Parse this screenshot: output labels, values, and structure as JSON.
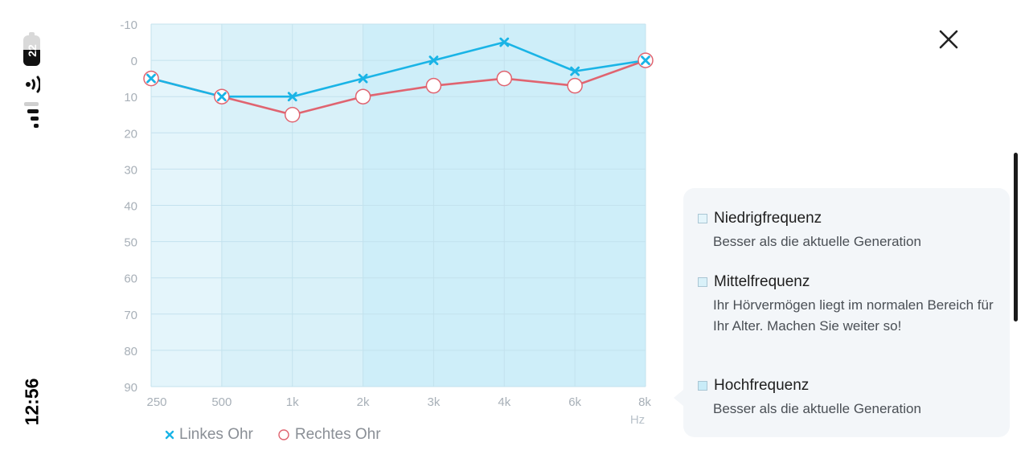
{
  "status_bar": {
    "time": "12:56",
    "battery_level": "22"
  },
  "colors": {
    "left_ear": "#1ab4e6",
    "right_ear": "#e06470",
    "band_low": "#e4f5fb",
    "band_mid": "#d9f1f9",
    "band_high": "#ceeef9"
  },
  "chart_data": {
    "type": "line",
    "categories": [
      "250",
      "500",
      "1k",
      "2k",
      "3k",
      "4k",
      "6k",
      "8k"
    ],
    "y_ticks": [
      "-10",
      "0",
      "10",
      "20",
      "30",
      "40",
      "50",
      "60",
      "70",
      "80",
      "90"
    ],
    "ylim": [
      -10,
      90
    ],
    "y_inverted": true,
    "x_unit": "Hz",
    "grid": true,
    "series": [
      {
        "name": "Linkes Ohr",
        "marker": "x",
        "color": "#1ab4e6",
        "values": [
          5,
          10,
          10,
          5,
          0,
          -5,
          3,
          0
        ]
      },
      {
        "name": "Rechtes Ohr",
        "marker": "o",
        "color": "#e06470",
        "values": [
          5,
          10,
          15,
          10,
          7,
          5,
          7,
          0
        ]
      }
    ],
    "bands": [
      {
        "name": "Niedrigfrequenz",
        "from": "250",
        "to": "500"
      },
      {
        "name": "Mittelfrequenz",
        "from": "500",
        "to": "2k"
      },
      {
        "name": "Hochfrequenz",
        "from": "2k",
        "to": "8k"
      }
    ]
  },
  "legend": {
    "left_label": "Linkes Ohr",
    "right_label": "Rechtes Ohr"
  },
  "info_panel": {
    "low": {
      "title": "Niedrigfrequenz",
      "desc": "Besser als die aktuelle Generation"
    },
    "mid": {
      "title": "Mittelfrequenz",
      "desc": "Ihr Hörvermögen liegt im normalen Bereich für Ihr Alter. Machen Sie weiter so!"
    },
    "high": {
      "title": "Hochfrequenz",
      "desc": "Besser als die aktuelle Generation"
    }
  }
}
